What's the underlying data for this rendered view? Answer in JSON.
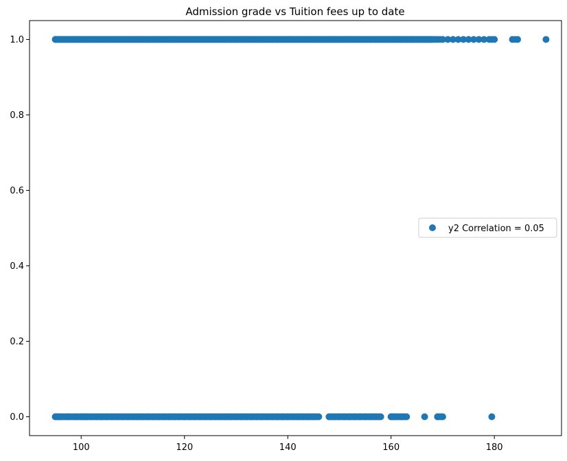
{
  "chart_data": {
    "type": "scatter",
    "title": "Admission grade vs Tuition fees up to date",
    "xlabel": "",
    "ylabel": "",
    "xlim": [
      90,
      193
    ],
    "ylim": [
      -0.05,
      1.05
    ],
    "x_ticks": [
      100,
      120,
      140,
      160,
      180
    ],
    "x_tick_labels": [
      "100",
      "120",
      "140",
      "160",
      "180"
    ],
    "y_ticks": [
      0.0,
      0.2,
      0.4,
      0.6,
      0.8,
      1.0
    ],
    "y_tick_labels": [
      "0.0",
      "0.2",
      "0.4",
      "0.6",
      "0.8",
      "1.0"
    ],
    "grid": false,
    "legend": {
      "placement": "center-right",
      "entries": [
        {
          "label": "y2 Correlation = 0.05",
          "color": "#1f77b4"
        }
      ]
    },
    "series": [
      {
        "name": "y2 Correlation = 0.05",
        "color": "#1f77b4",
        "marker": "circle",
        "points": {
          "y_equals_1_dense_range": [
            95,
            168
          ],
          "y_equals_1_sparse_x": [
            95,
            95.5,
            96,
            97,
            98,
            99,
            100,
            101,
            102,
            103,
            104,
            105,
            106,
            107,
            108,
            109,
            110,
            111,
            112,
            113,
            114,
            115,
            116,
            117,
            118,
            119,
            120,
            121,
            122,
            123,
            124,
            125,
            126,
            127,
            128,
            129,
            130,
            131,
            132,
            133,
            134,
            135,
            136,
            137,
            138,
            139,
            140,
            141,
            142,
            143,
            144,
            145,
            146,
            147,
            148,
            149,
            150,
            151,
            152,
            153,
            154,
            155,
            156,
            157,
            158,
            159,
            160,
            161,
            162,
            163,
            164,
            165,
            166,
            167,
            168,
            168.5,
            169,
            169.5,
            170,
            171,
            172,
            173,
            174,
            175,
            176,
            177,
            178,
            179,
            179.5,
            180,
            183.5,
            184,
            184.5,
            190
          ],
          "y_equals_0_x": [
            95,
            95.5,
            96,
            97.5,
            99,
            100,
            100.5,
            101,
            102,
            103,
            104,
            105,
            106,
            107,
            108,
            109,
            110,
            111,
            112,
            113,
            114,
            115,
            116,
            117,
            118,
            119,
            120,
            121,
            122,
            123,
            124,
            125,
            126,
            127,
            128,
            129,
            130,
            131,
            132,
            133,
            134,
            135,
            136,
            137,
            138,
            139,
            140,
            141,
            142,
            143,
            144,
            145,
            146,
            148,
            149,
            150,
            151,
            152,
            153,
            154,
            155,
            156,
            157,
            158,
            160,
            160.5,
            162,
            163,
            166.5,
            169,
            170,
            179.5
          ]
        }
      }
    ]
  }
}
